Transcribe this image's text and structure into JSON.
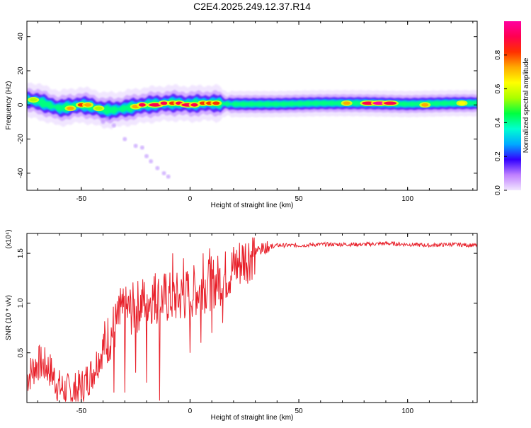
{
  "title": "C2E4.2025.249.12.37.R14",
  "chart_data": [
    {
      "type": "heatmap",
      "xlabel": "Height of straight line (km)",
      "ylabel": "Frequency (Hz)",
      "xlim": [
        -75,
        132
      ],
      "ylim": [
        -50,
        49
      ],
      "xticks": [
        -50,
        0,
        50,
        100
      ],
      "xtick_labels": [
        "-50",
        "0",
        "50",
        "100"
      ],
      "yticks": [
        40,
        20,
        0,
        -20,
        -40
      ],
      "ytick_labels": [
        "40",
        "20",
        "0",
        "-20",
        "-40"
      ],
      "colorbar": {
        "label": "Normalized spectral amplitude",
        "range": [
          0,
          1
        ],
        "ticks": [
          0.0,
          0.2,
          0.4,
          0.6,
          0.8
        ],
        "tick_labels": [
          "0.0",
          "0.2",
          "0.4",
          "0.6",
          "0.8"
        ],
        "colors": [
          "#f2e6ff",
          "#c080ff",
          "#3300ff",
          "#00aaff",
          "#00ffd0",
          "#00ff40",
          "#aaff00",
          "#ffff00",
          "#ffaa00",
          "#ff3000",
          "#ff0050",
          "#ff00a0"
        ]
      },
      "ridge": [
        [
          -75,
          3
        ],
        [
          -70,
          2
        ],
        [
          -65,
          0
        ],
        [
          -60,
          -2
        ],
        [
          -55,
          -1
        ],
        [
          -50,
          0
        ],
        [
          -45,
          -1
        ],
        [
          -40,
          -3
        ],
        [
          -35,
          -3
        ],
        [
          -30,
          -2
        ],
        [
          -25,
          -1
        ],
        [
          -20,
          0
        ],
        [
          -15,
          0.5
        ],
        [
          -10,
          1
        ],
        [
          -5,
          1
        ],
        [
          0,
          0.5
        ],
        [
          5,
          1
        ],
        [
          10,
          1
        ],
        [
          20,
          0.5
        ],
        [
          40,
          0.5
        ],
        [
          60,
          1
        ],
        [
          80,
          1
        ],
        [
          100,
          0.5
        ],
        [
          120,
          1
        ],
        [
          132,
          1
        ]
      ],
      "hot_spots": [
        [
          -72,
          3,
          0.55
        ],
        [
          -55,
          -2,
          0.7
        ],
        [
          -50,
          0,
          0.8
        ],
        [
          -47,
          0,
          0.75
        ],
        [
          -42,
          -2,
          0.5
        ],
        [
          -25,
          -1,
          0.7
        ],
        [
          -22,
          0,
          0.9
        ],
        [
          -16,
          0,
          0.95
        ],
        [
          -12,
          1,
          0.9
        ],
        [
          -8,
          1,
          0.85
        ],
        [
          -5,
          1,
          0.9
        ],
        [
          -1,
          0,
          0.95
        ],
        [
          2,
          0,
          0.9
        ],
        [
          6,
          1,
          0.85
        ],
        [
          9,
          1,
          0.8
        ],
        [
          12,
          1,
          0.8
        ],
        [
          72,
          1,
          0.75
        ],
        [
          82,
          1,
          0.95
        ],
        [
          87,
          1,
          1.0
        ],
        [
          92,
          1,
          0.95
        ],
        [
          108,
          0,
          0.7
        ],
        [
          125,
          1,
          0.6
        ]
      ],
      "scatter": [
        [
          -30,
          -20
        ],
        [
          -25,
          -24
        ],
        [
          -22,
          -25
        ],
        [
          -20,
          -30
        ],
        [
          -18,
          -33
        ],
        [
          -15,
          -37
        ],
        [
          -12,
          -40
        ],
        [
          -10,
          -42
        ],
        [
          -40,
          -10
        ],
        [
          -35,
          -12
        ],
        [
          -38,
          -8
        ]
      ]
    },
    {
      "type": "line",
      "xlabel": "Height of straight line (km)",
      "ylabel": "SNR (10 * v/v)",
      "y_multiplier": "(x10⁴)",
      "xlim": [
        -75,
        132
      ],
      "ylim": [
        0,
        1.7
      ],
      "xticks": [
        -50,
        0,
        50,
        100
      ],
      "xtick_labels": [
        "-50",
        "0",
        "50",
        "100"
      ],
      "yticks": [
        0.5,
        1.0,
        1.5
      ],
      "ytick_labels": [
        "0.5",
        "1.0",
        "1.5"
      ],
      "line_color": "#e8202a",
      "envelope": [
        [
          -75,
          0.25
        ],
        [
          -70,
          0.4
        ],
        [
          -65,
          0.35
        ],
        [
          -60,
          0.15
        ],
        [
          -55,
          0.1
        ],
        [
          -50,
          0.15
        ],
        [
          -45,
          0.3
        ],
        [
          -40,
          0.55
        ],
        [
          -35,
          0.75
        ],
        [
          -30,
          0.9
        ],
        [
          -25,
          0.95
        ],
        [
          -20,
          1.05
        ],
        [
          -15,
          1.05
        ],
        [
          -10,
          1.05
        ],
        [
          -5,
          1.05
        ],
        [
          0,
          1.1
        ],
        [
          5,
          1.15
        ],
        [
          10,
          1.2
        ],
        [
          15,
          1.25
        ],
        [
          20,
          1.35
        ],
        [
          25,
          1.45
        ],
        [
          30,
          1.52
        ],
        [
          35,
          1.56
        ],
        [
          40,
          1.58
        ],
        [
          50,
          1.58
        ],
        [
          60,
          1.59
        ],
        [
          70,
          1.59
        ],
        [
          80,
          1.59
        ],
        [
          90,
          1.6
        ],
        [
          100,
          1.59
        ],
        [
          110,
          1.58
        ],
        [
          120,
          1.59
        ],
        [
          132,
          1.58
        ]
      ],
      "spikes": [
        [
          -20,
          1.6
        ],
        [
          -16,
          1.3
        ],
        [
          -32,
          1.15
        ],
        [
          -25,
          1.1
        ],
        [
          -8,
          1.5
        ],
        [
          -3,
          1.45
        ],
        [
          6,
          1.5
        ],
        [
          9,
          1.55
        ],
        [
          2,
          1.3
        ]
      ],
      "dips": [
        [
          -14,
          0.02
        ],
        [
          -20,
          0.2
        ],
        [
          -25,
          0.3
        ],
        [
          0,
          0.5
        ],
        [
          5,
          0.6
        ],
        [
          10,
          0.7
        ],
        [
          15,
          0.8
        ],
        [
          -35,
          0.1
        ],
        [
          -30,
          0.1
        ]
      ]
    }
  ]
}
